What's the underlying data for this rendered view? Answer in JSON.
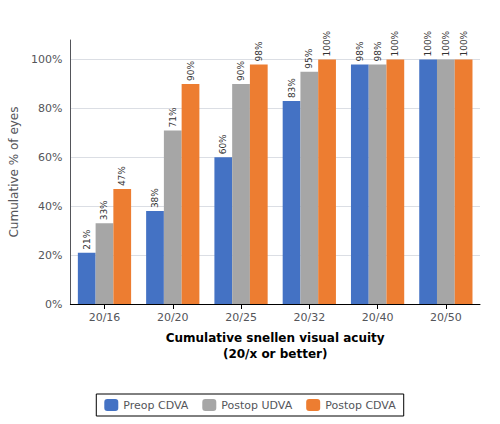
{
  "chart_data": {
    "type": "bar",
    "categories": [
      "20/16",
      "20/20",
      "20/25",
      "20/32",
      "20/40",
      "20/50"
    ],
    "series": [
      {
        "name": "Preop CDVA",
        "color": "#4472C4",
        "values": [
          21,
          38,
          60,
          83,
          98,
          100
        ],
        "value_labels": [
          "21%",
          "38%",
          "60%",
          "83%",
          "98%",
          "100%"
        ]
      },
      {
        "name": "Postop UDVA",
        "color": "#A6A6A6",
        "values": [
          33,
          71,
          90,
          95,
          98,
          100
        ],
        "value_labels": [
          "33%",
          "71%",
          "90%",
          "95%",
          "98%",
          "100%"
        ]
      },
      {
        "name": "Postop CDVA",
        "color": "#ED7D31",
        "values": [
          47,
          90,
          98,
          100,
          100,
          100
        ],
        "value_labels": [
          "47%",
          "90%",
          "98%",
          "100%",
          "100%",
          "100%"
        ]
      }
    ],
    "xlabel": "Cumulative snellen visual acuity\n(20/x or better)",
    "ylabel": "Cumulative % of eyes",
    "ylim": [
      0,
      108
    ],
    "yticks": [
      {
        "value": 0,
        "label": "0%"
      },
      {
        "value": 20,
        "label": "20%"
      },
      {
        "value": 40,
        "label": "40%"
      },
      {
        "value": 60,
        "label": "60%"
      },
      {
        "value": 80,
        "label": "80%"
      },
      {
        "value": 100,
        "label": "100%"
      }
    ],
    "grid": true,
    "data_labels": true,
    "legend": "bottom"
  }
}
